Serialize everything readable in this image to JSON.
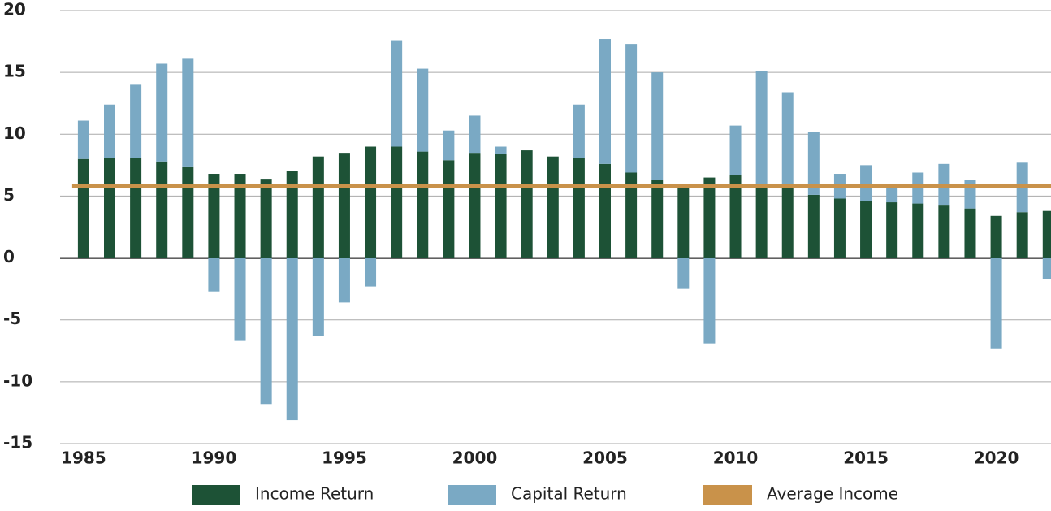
{
  "chart_data": {
    "type": "stacked-bar",
    "x": [
      1985,
      1986,
      1987,
      1988,
      1989,
      1990,
      1991,
      1992,
      1993,
      1994,
      1995,
      1996,
      1997,
      1998,
      1999,
      2000,
      2001,
      2002,
      2003,
      2004,
      2005,
      2006,
      2007,
      2008,
      2009,
      2010,
      2011,
      2012,
      2013,
      2014,
      2015,
      2016,
      2017,
      2018,
      2019,
      2020,
      2021,
      2022
    ],
    "series": [
      {
        "name": "Income Return",
        "color": "#1d5236",
        "values": [
          8.0,
          8.1,
          8.1,
          7.8,
          7.4,
          6.8,
          6.8,
          6.4,
          7.0,
          8.2,
          8.5,
          9.0,
          9.0,
          8.6,
          7.9,
          8.5,
          8.4,
          8.7,
          8.2,
          8.1,
          7.6,
          6.9,
          6.3,
          5.7,
          6.5,
          6.7,
          5.7,
          5.7,
          5.1,
          4.8,
          4.6,
          4.5,
          4.4,
          4.3,
          4.0,
          3.4,
          3.7,
          3.8
        ]
      },
      {
        "name": "Capital Return",
        "color": "#7aa9c4",
        "values": [
          3.1,
          4.3,
          5.9,
          7.9,
          8.7,
          -2.7,
          -6.7,
          -11.8,
          -13.1,
          -6.3,
          -3.6,
          -2.3,
          8.6,
          6.7,
          2.4,
          3.0,
          0.6,
          0,
          0,
          4.3,
          10.1,
          10.4,
          8.7,
          -2.5,
          -6.9,
          4.0,
          9.4,
          7.7,
          5.1,
          2.0,
          2.9,
          1.3,
          2.5,
          3.3,
          2.3,
          -7.3,
          4.0,
          -1.7
        ]
      }
    ],
    "reference": {
      "name": "Average Income",
      "color": "#c9924a",
      "value": 5.8
    },
    "xlim": [
      1984.1,
      2022.1
    ],
    "xticks": [
      1985,
      1990,
      1995,
      2000,
      2005,
      2010,
      2015,
      2020
    ],
    "ylim": [
      -15,
      20
    ],
    "yticks": [
      -15,
      -10,
      -5,
      0,
      5,
      10,
      15,
      20
    ],
    "grid": true
  }
}
